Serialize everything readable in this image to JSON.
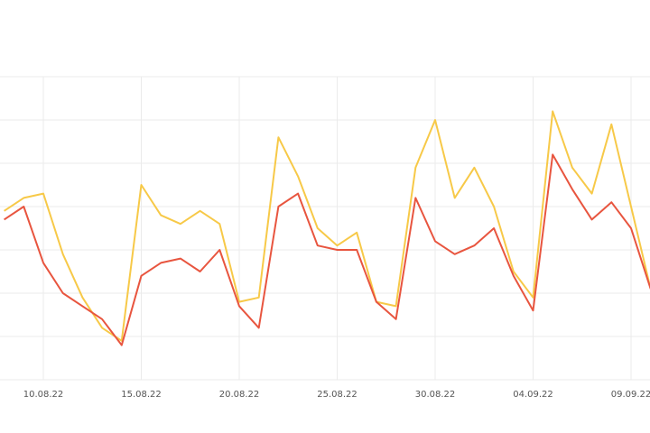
{
  "chart_data": {
    "type": "line",
    "categories": [
      null,
      null,
      "10.08.22",
      null,
      null,
      null,
      null,
      "15.08.22",
      null,
      null,
      null,
      null,
      "20.08.22",
      null,
      null,
      null,
      null,
      "25.08.22",
      null,
      null,
      null,
      null,
      "30.08.22",
      null,
      null,
      null,
      null,
      "04.09.22",
      null,
      null,
      null,
      null,
      "09.09.22",
      null
    ],
    "category_label_colors": [
      null,
      null,
      "#555555",
      null,
      null,
      null,
      null,
      "#555555",
      null,
      null,
      null,
      null,
      "#d9534f",
      null,
      null,
      null,
      null,
      "#555555",
      null,
      null,
      null,
      null,
      "#555555",
      null,
      null,
      null,
      null,
      "#d9534f",
      null,
      null,
      null,
      null,
      "#555555",
      null
    ],
    "series": [
      {
        "color": "#f7c948",
        "values": [
          39,
          42,
          43,
          29,
          19,
          12,
          9,
          45,
          38,
          36,
          39,
          36,
          18,
          19,
          56,
          47,
          35,
          31,
          34,
          18,
          17,
          49,
          60,
          42,
          49,
          40,
          25,
          19,
          62,
          49,
          43,
          59,
          40,
          21
        ]
      },
      {
        "color": "#e8553f",
        "values": [
          37,
          40,
          27,
          20,
          17,
          14,
          8,
          24,
          27,
          28,
          25,
          30,
          17,
          12,
          40,
          43,
          31,
          30,
          30,
          18,
          14,
          42,
          32,
          29,
          31,
          35,
          24,
          16,
          52,
          44,
          37,
          41,
          35,
          21
        ]
      }
    ],
    "ylim": [
      0,
      70
    ],
    "yticks": [
      0,
      10,
      20,
      30,
      40,
      50,
      60,
      70
    ],
    "grid": true
  }
}
